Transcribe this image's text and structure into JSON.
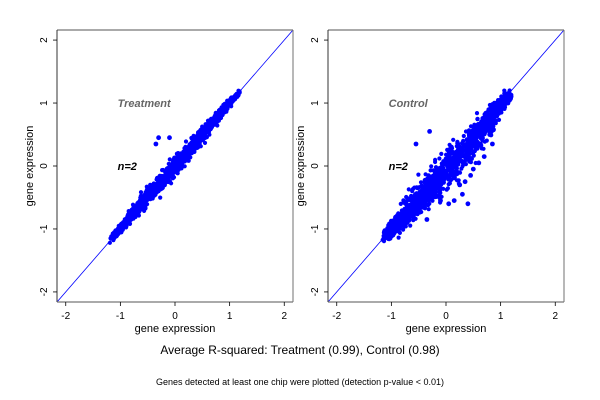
{
  "chart_data": [
    {
      "type": "scatter",
      "title": "Treatment",
      "annotation": "n=2",
      "xlabel": "gene expression",
      "ylabel": "gene expression",
      "xlim": [
        -2.16,
        2.16
      ],
      "ylim": [
        -2.16,
        2.16
      ],
      "xticks": [
        "-2",
        "-1",
        "0",
        "1",
        "2"
      ],
      "yticks": [
        "-2",
        "-1",
        "0",
        "1",
        "2"
      ],
      "xtick_values": [
        -2,
        -1,
        0,
        1,
        2
      ],
      "ytick_values": [
        -2,
        -1,
        0,
        1,
        2
      ],
      "reference_line": {
        "slope": 1,
        "intercept": 0,
        "color": "#0000ff"
      },
      "point_color": "#0000ff",
      "r_squared": 0.99,
      "cloud": {
        "x_min": -1.12,
        "x_max": 1.15,
        "spread": 0.06
      },
      "outliers": [
        [
          -0.3,
          0.45
        ],
        [
          -0.35,
          0.35
        ],
        [
          -0.1,
          0.45
        ],
        [
          0.2,
          0.1
        ],
        [
          -0.45,
          -0.35
        ],
        [
          0.55,
          0.45
        ],
        [
          0.8,
          0.8
        ]
      ]
    },
    {
      "type": "scatter",
      "title": "Control",
      "annotation": "n=2",
      "xlabel": "gene expression",
      "ylabel": "gene expression",
      "xlim": [
        -2.16,
        2.16
      ],
      "ylim": [
        -2.16,
        2.16
      ],
      "xticks": [
        "-2",
        "-1",
        "0",
        "1",
        "2"
      ],
      "yticks": [
        "-2",
        "-1",
        "0",
        "1",
        "2"
      ],
      "xtick_values": [
        -2,
        -1,
        0,
        1,
        2
      ],
      "ytick_values": [
        -2,
        -1,
        0,
        1,
        2
      ],
      "reference_line": {
        "slope": 1,
        "intercept": 0,
        "color": "#0000ff"
      },
      "point_color": "#0000ff",
      "r_squared": 0.98,
      "cloud": {
        "x_min": -1.1,
        "x_max": 1.15,
        "spread": 0.13
      },
      "outliers": [
        [
          0.85,
          0.35
        ],
        [
          0.7,
          0.15
        ],
        [
          0.6,
          0.05
        ],
        [
          0.8,
          0.5
        ],
        [
          0.45,
          -0.15
        ],
        [
          0.25,
          -0.3
        ],
        [
          0.3,
          -0.45
        ],
        [
          0.15,
          -0.55
        ],
        [
          0.05,
          -0.6
        ],
        [
          -0.1,
          -0.55
        ],
        [
          -0.35,
          -0.85
        ],
        [
          0.4,
          -0.6
        ],
        [
          -0.55,
          0.35
        ],
        [
          -0.3,
          0.55
        ],
        [
          0.5,
          -0.05
        ],
        [
          0.35,
          -0.25
        ]
      ]
    }
  ],
  "captions": {
    "main": "Average R-squared: Treatment (0.99), Control (0.98)",
    "sub": "Genes detected at least one chip were plotted (detection p-value < 0.01)"
  }
}
